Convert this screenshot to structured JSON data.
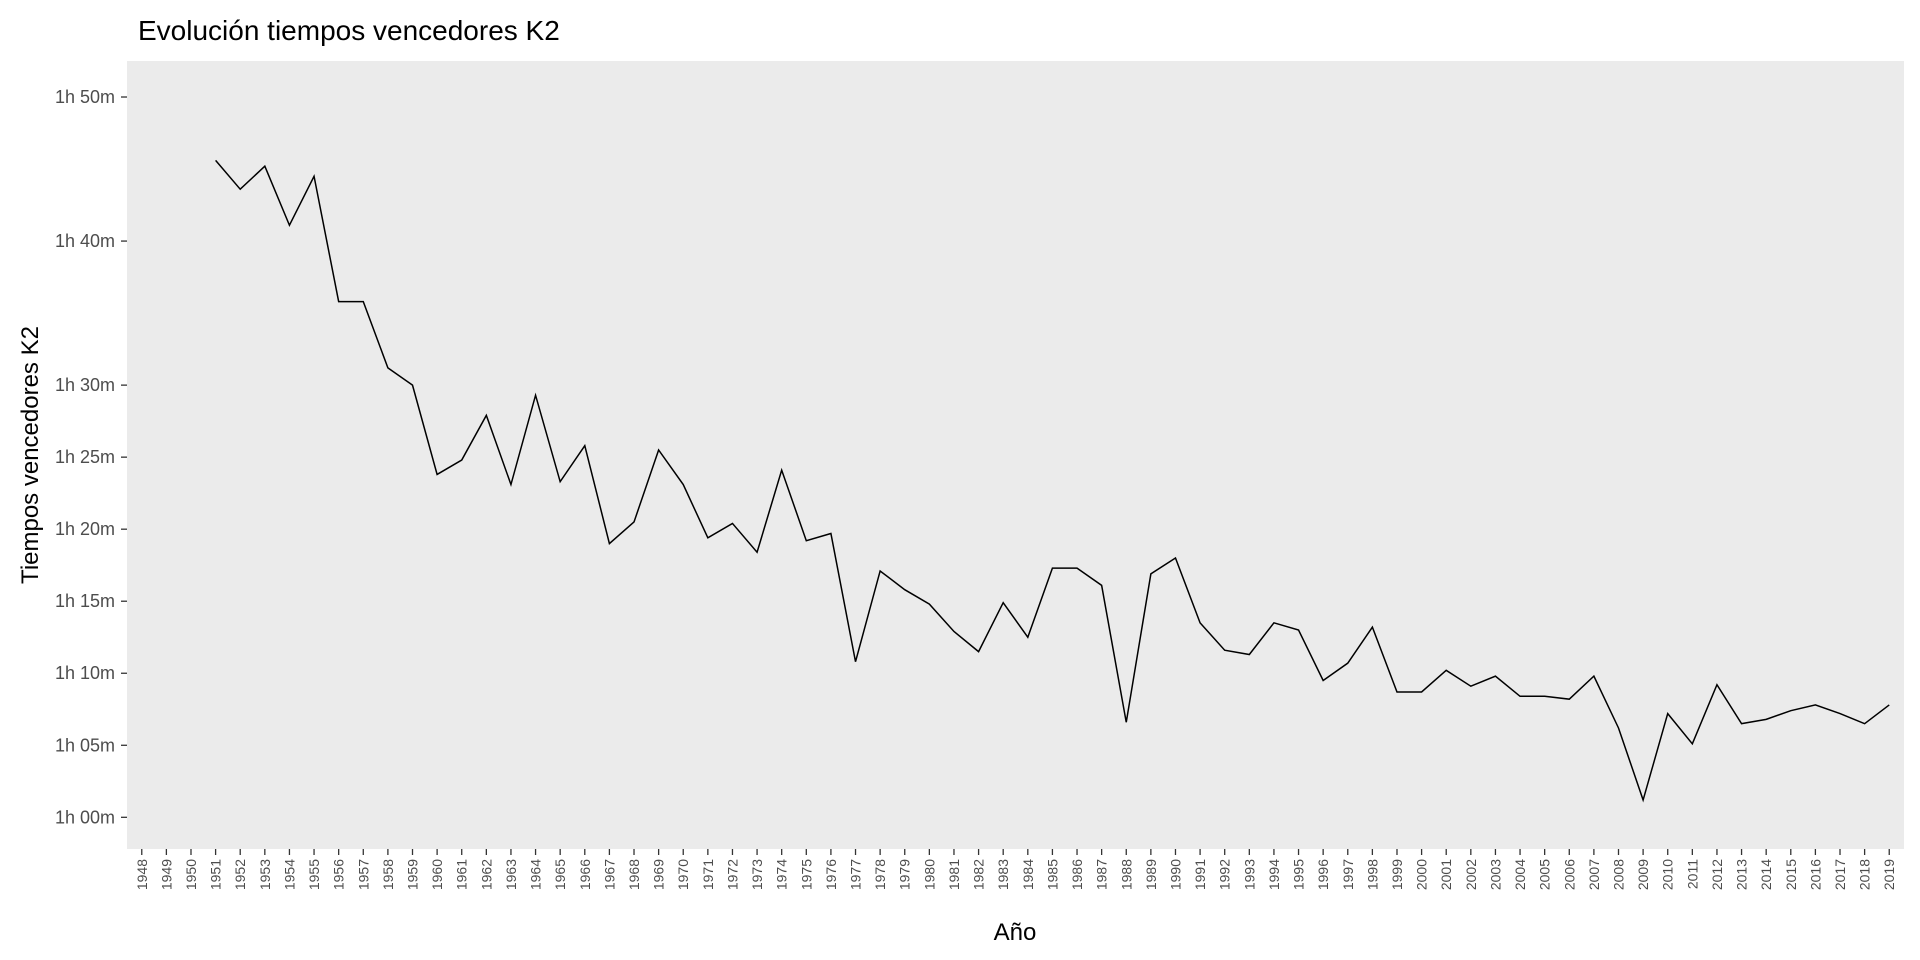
{
  "chart_data": {
    "type": "line",
    "title": "Evolución tiempos vencedores K2",
    "x_label": "Año",
    "y_label": "Tiempos vencedores K2",
    "categories": [
      "1948",
      "1949",
      "1950",
      "1951",
      "1952",
      "1953",
      "1954",
      "1955",
      "1956",
      "1957",
      "1958",
      "1959",
      "1960",
      "1961",
      "1962",
      "1963",
      "1964",
      "1965",
      "1966",
      "1967",
      "1968",
      "1969",
      "1970",
      "1971",
      "1972",
      "1973",
      "1974",
      "1975",
      "1976",
      "1977",
      "1978",
      "1979",
      "1980",
      "1981",
      "1982",
      "1983",
      "1984",
      "1985",
      "1986",
      "1987",
      "1988",
      "1989",
      "1990",
      "1991",
      "1992",
      "1993",
      "1994",
      "1995",
      "1996",
      "1997",
      "1998",
      "1999",
      "2000",
      "2001",
      "2002",
      "2003",
      "2004",
      "2005",
      "2006",
      "2007",
      "2008",
      "2009",
      "2010",
      "2011",
      "2012",
      "2013",
      "2014",
      "2015",
      "2016",
      "2017",
      "2018",
      "2019"
    ],
    "values": [
      null,
      null,
      null,
      105.6,
      103.6,
      105.2,
      101.1,
      104.5,
      95.8,
      95.8,
      91.2,
      90.0,
      83.8,
      84.8,
      87.9,
      83.1,
      89.3,
      83.3,
      85.8,
      79.0,
      80.5,
      85.5,
      83.1,
      79.4,
      80.4,
      78.4,
      84.1,
      79.2,
      79.7,
      70.8,
      77.1,
      75.8,
      74.8,
      72.9,
      71.5,
      74.9,
      72.5,
      77.3,
      77.3,
      76.1,
      66.6,
      76.9,
      78.0,
      73.5,
      71.6,
      71.3,
      73.5,
      73.0,
      69.5,
      70.7,
      73.2,
      68.7,
      68.7,
      70.2,
      69.1,
      69.8,
      68.4,
      68.4,
      68.2,
      69.8,
      66.2,
      61.2,
      67.2,
      65.1,
      69.2,
      66.5,
      66.8,
      67.4,
      67.8,
      67.2,
      66.5,
      67.8
    ],
    "color": "#000000",
    "ylim": [
      57.8,
      112.5
    ],
    "yticks": [
      {
        "value": 60,
        "label": "1h 00m"
      },
      {
        "value": 65,
        "label": "1h 05m"
      },
      {
        "value": 70,
        "label": "1h 10m"
      },
      {
        "value": 75,
        "label": "1h 15m"
      },
      {
        "value": 80,
        "label": "1h 20m"
      },
      {
        "value": 85,
        "label": "1h 25m"
      },
      {
        "value": 90,
        "label": "1h 30m"
      },
      {
        "value": 100,
        "label": "1h 40m"
      },
      {
        "value": 110,
        "label": "1h 50m"
      }
    ],
    "grid": false
  }
}
